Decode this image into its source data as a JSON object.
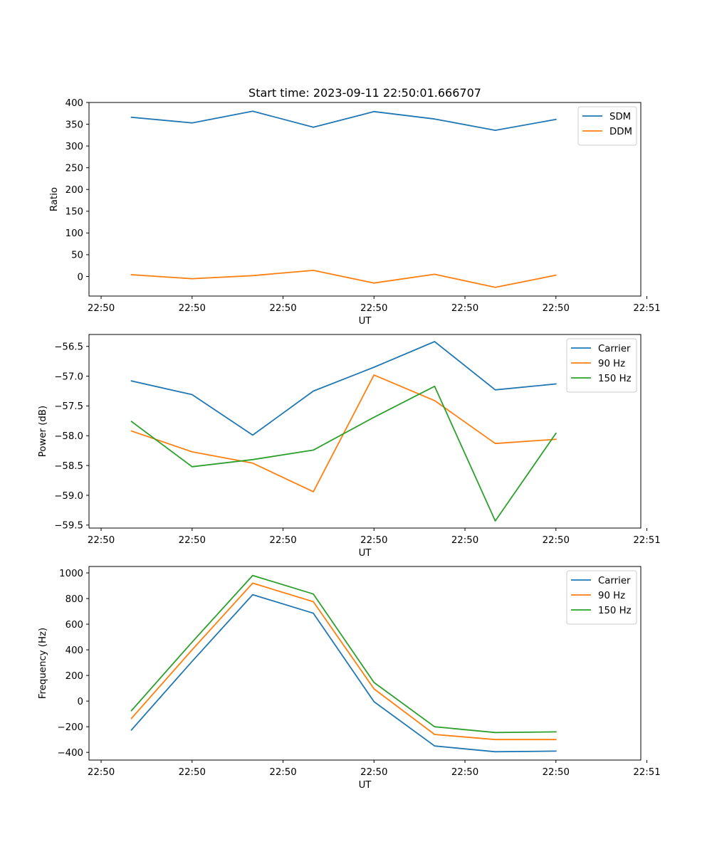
{
  "figure_title": "Start time: 2023-09-11 22:50:01.666707",
  "chart_data": [
    {
      "type": "line",
      "title": "Start time: 2023-09-11 22:50:01.666707",
      "xlabel": "UT",
      "ylabel": "Ratio",
      "x": [
        1,
        2,
        3,
        4,
        5,
        6,
        7,
        8
      ],
      "xlim": [
        0.3,
        9.4
      ],
      "x_ticks": [
        0.5,
        2,
        3.5,
        5,
        6.5,
        8,
        9.5
      ],
      "x_tick_labels": [
        "22:50",
        "22:50",
        "22:50",
        "22:50",
        "22:50",
        "22:50",
        "22:51"
      ],
      "ylim": [
        -45,
        400
      ],
      "y_ticks": [
        0,
        50,
        100,
        150,
        200,
        250,
        300,
        350,
        400
      ],
      "y_tick_labels": [
        "0",
        "50",
        "100",
        "150",
        "200",
        "250",
        "300",
        "350",
        "400"
      ],
      "legend_position": "top-right",
      "series": [
        {
          "name": "SDM",
          "color": "#1f77b4",
          "values": [
            366,
            353,
            380,
            343,
            379,
            362,
            336,
            361
          ]
        },
        {
          "name": "DDM",
          "color": "#ff7f0e",
          "values": [
            4,
            -5,
            2,
            14,
            -15,
            5,
            -25,
            3
          ]
        }
      ]
    },
    {
      "type": "line",
      "title": "",
      "xlabel": "UT",
      "ylabel": "Power (dB)",
      "x": [
        1,
        2,
        3,
        4,
        5,
        6,
        7,
        8
      ],
      "xlim": [
        0.3,
        9.4
      ],
      "x_ticks": [
        0.5,
        2,
        3.5,
        5,
        6.5,
        8,
        9.5
      ],
      "x_tick_labels": [
        "22:50",
        "22:50",
        "22:50",
        "22:50",
        "22:50",
        "22:50",
        "22:51"
      ],
      "ylim": [
        -59.55,
        -56.3
      ],
      "y_ticks": [
        -59.5,
        -59.0,
        -58.5,
        -58.0,
        -57.5,
        -57.0,
        -56.5
      ],
      "y_tick_labels": [
        "−59.5",
        "−59.0",
        "−58.5",
        "−58.0",
        "−57.5",
        "−57.0",
        "−56.5"
      ],
      "legend_position": "top-right",
      "series": [
        {
          "name": "Carrier",
          "color": "#1f77b4",
          "values": [
            -57.08,
            -57.31,
            -57.99,
            -57.25,
            -56.85,
            -56.42,
            -57.23,
            -57.13
          ]
        },
        {
          "name": "90 Hz",
          "color": "#ff7f0e",
          "values": [
            -57.92,
            -58.27,
            -58.46,
            -58.94,
            -56.98,
            -57.41,
            -58.13,
            -58.06
          ]
        },
        {
          "name": "150 Hz",
          "color": "#2ca02c",
          "values": [
            -57.76,
            -58.52,
            -58.4,
            -58.24,
            -57.69,
            -57.17,
            -59.43,
            -57.96
          ]
        }
      ]
    },
    {
      "type": "line",
      "title": "",
      "xlabel": "UT",
      "ylabel": "Frequency (Hz)",
      "x": [
        1,
        2,
        3,
        4,
        5,
        6,
        7,
        8
      ],
      "xlim": [
        0.3,
        9.4
      ],
      "x_ticks": [
        0.5,
        2,
        3.5,
        5,
        6.5,
        8,
        9.5
      ],
      "x_tick_labels": [
        "22:50",
        "22:50",
        "22:50",
        "22:50",
        "22:50",
        "22:50",
        "22:51"
      ],
      "ylim": [
        -460,
        1050
      ],
      "y_ticks": [
        -400,
        -200,
        0,
        200,
        400,
        600,
        800,
        1000
      ],
      "y_tick_labels": [
        "−400",
        "−200",
        "0",
        "200",
        "400",
        "600",
        "800",
        "1000"
      ],
      "legend_position": "top-right",
      "series": [
        {
          "name": "Carrier",
          "color": "#1f77b4",
          "values": [
            -225,
            310,
            830,
            685,
            -5,
            -350,
            -395,
            -390
          ]
        },
        {
          "name": "90 Hz",
          "color": "#ff7f0e",
          "values": [
            -135,
            400,
            920,
            775,
            95,
            -260,
            -300,
            -300
          ]
        },
        {
          "name": "150 Hz",
          "color": "#2ca02c",
          "values": [
            -75,
            460,
            980,
            835,
            145,
            -200,
            -245,
            -240
          ]
        }
      ]
    }
  ]
}
